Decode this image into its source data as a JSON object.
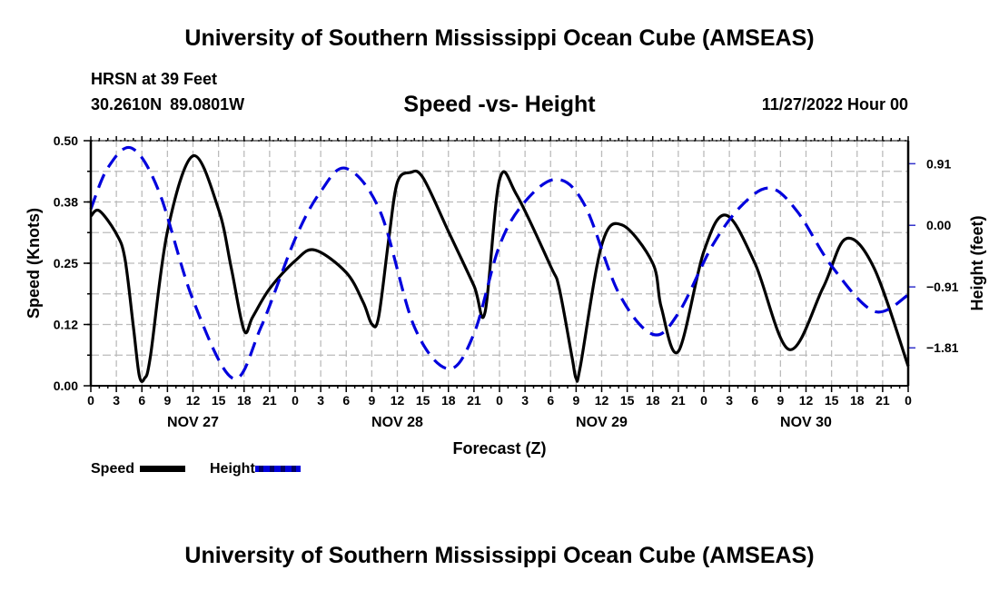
{
  "header": {
    "title": "University of Southern Mississippi Ocean Cube (AMSEAS)",
    "station": "HRSN at 39 Feet",
    "coordinates": "30.2610N  89.0801W",
    "subtitle": "Speed -vs- Height",
    "datestamp": "11/27/2022 Hour 00"
  },
  "footer": {
    "title": "University of Southern Mississippi Ocean Cube (AMSEAS)"
  },
  "legend": {
    "speed_label": "Speed",
    "height_label": "Height"
  },
  "colors": {
    "speed": "#000000",
    "height": "#0000dd",
    "grid": "#bbbbbb"
  },
  "chart_data": {
    "type": "line",
    "title": "Speed -vs- Height",
    "xlabel": "Forecast (Z)",
    "ylabel": "Speed (Knots)",
    "y2label": "Height (feet)",
    "grid": true,
    "legend_position": "bottom-left",
    "x_unit": "hours since 11/27/2022 00Z",
    "xlim": [
      0,
      96
    ],
    "ylim": [
      0,
      0.5
    ],
    "y2lim": [
      -2.37,
      1.25
    ],
    "x_tick_labels": [
      "0",
      "3",
      "6",
      "9",
      "12",
      "15",
      "18",
      "21",
      "0",
      "3",
      "6",
      "9",
      "12",
      "15",
      "18",
      "21",
      "0",
      "3",
      "6",
      "9",
      "12",
      "15",
      "18",
      "21",
      "0",
      "3",
      "6",
      "9",
      "12",
      "15",
      "18",
      "21",
      "0"
    ],
    "day_labels": [
      "NOV 27",
      "NOV 28",
      "NOV 29",
      "NOV 30"
    ],
    "y_tick_labels": [
      "0.00",
      "0.12",
      "0.25",
      "0.38",
      "0.50"
    ],
    "y_ticks": [
      0,
      0.125,
      0.25,
      0.375,
      0.5
    ],
    "y2_tick_labels": [
      "0.91",
      "0.00",
      "−0.91",
      "−1.81"
    ],
    "y2_ticks": [
      0.91,
      0.0,
      -0.91,
      -1.81
    ],
    "series": [
      {
        "name": "Speed",
        "axis": "left",
        "style": "solid",
        "x": [
          0,
          1,
          3,
          4,
          5,
          5.7,
          6.3,
          7,
          9,
          12,
          15,
          16.5,
          18,
          19,
          21,
          24,
          26.3,
          30,
          32,
          33,
          33.8,
          35,
          36,
          37.5,
          39,
          42,
          45,
          46.3,
          48,
          50,
          54,
          55,
          56.5,
          57,
          57.5,
          60,
          62.4,
          66,
          67,
          69,
          72,
          74.6,
          78,
          82,
          86,
          88.7,
          92,
          96
        ],
        "values": [
          0.346,
          0.357,
          0.31,
          0.26,
          0.12,
          0.02,
          0.015,
          0.06,
          0.315,
          0.469,
          0.36,
          0.24,
          0.113,
          0.14,
          0.198,
          0.255,
          0.277,
          0.231,
          0.17,
          0.126,
          0.14,
          0.3,
          0.415,
          0.435,
          0.425,
          0.315,
          0.204,
          0.15,
          0.42,
          0.39,
          0.244,
          0.2,
          0.06,
          0.015,
          0.04,
          0.287,
          0.328,
          0.25,
          0.16,
          0.07,
          0.274,
          0.348,
          0.25,
          0.074,
          0.2,
          0.3,
          0.24,
          0.04
        ]
      },
      {
        "name": "Height",
        "axis": "right",
        "style": "dashed",
        "x": [
          0,
          2,
          4.8,
          8,
          12,
          16.7,
          20,
          24,
          27,
          30,
          34,
          38,
          42,
          45,
          48,
          51,
          54.7,
          58,
          62,
          66,
          69,
          73,
          76.5,
          79.8,
          83,
          87,
          92,
          96
        ],
        "values": [
          0.24,
          0.85,
          1.14,
          0.5,
          -1.1,
          -2.26,
          -1.5,
          -0.2,
          0.5,
          0.84,
          0.2,
          -1.5,
          -2.12,
          -1.6,
          -0.3,
          0.35,
          0.68,
          0.3,
          -1.0,
          -1.61,
          -1.3,
          -0.3,
          0.3,
          0.55,
          0.2,
          -0.6,
          -1.27,
          -1.03
        ]
      }
    ]
  }
}
